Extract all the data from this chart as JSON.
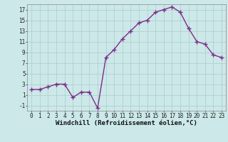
{
  "x": [
    0,
    1,
    2,
    3,
    4,
    5,
    6,
    7,
    8,
    9,
    10,
    11,
    12,
    13,
    14,
    15,
    16,
    17,
    18,
    19,
    20,
    21,
    22,
    23
  ],
  "y": [
    2,
    2,
    2.5,
    3,
    3,
    0.5,
    1.5,
    1.5,
    -1.5,
    8,
    9.5,
    11.5,
    13,
    14.5,
    15,
    16.5,
    17,
    17.5,
    16.5,
    13.5,
    11,
    10.5,
    8.5,
    8
  ],
  "line_color": "#7b2d8b",
  "marker": "+",
  "marker_size": 4,
  "marker_linewidth": 1.0,
  "bg_color": "#cce8e8",
  "grid_color": "#aacccc",
  "xlabel": "Windchill (Refroidissement éolien,°C)",
  "ylim": [
    -2,
    18
  ],
  "xlim": [
    -0.5,
    23.5
  ],
  "yticks": [
    -1,
    1,
    3,
    5,
    7,
    9,
    11,
    13,
    15,
    17
  ],
  "xticks": [
    0,
    1,
    2,
    3,
    4,
    5,
    6,
    7,
    8,
    9,
    10,
    11,
    12,
    13,
    14,
    15,
    16,
    17,
    18,
    19,
    20,
    21,
    22,
    23
  ],
  "tick_fontsize": 5.5,
  "xlabel_fontsize": 6.5,
  "linewidth": 1.0
}
